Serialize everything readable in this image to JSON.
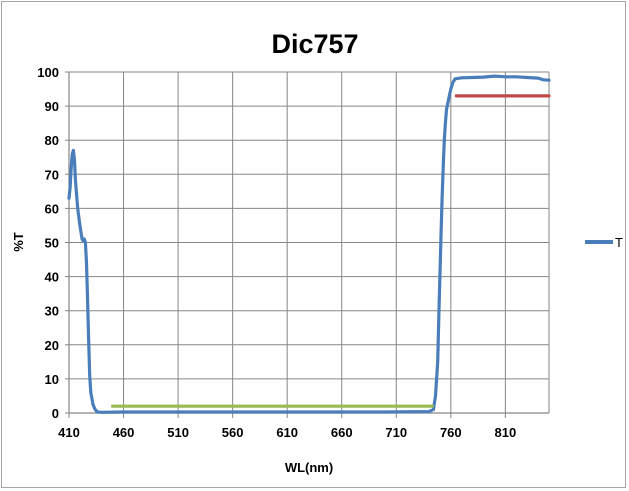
{
  "chart_data": {
    "type": "line",
    "title": "Dic757",
    "xlabel": "WL(nm)",
    "ylabel": "%T",
    "xlim": [
      410,
      850
    ],
    "ylim": [
      0,
      100
    ],
    "x_ticks": [
      410,
      460,
      510,
      560,
      610,
      660,
      710,
      760,
      810
    ],
    "y_ticks": [
      0,
      10,
      20,
      30,
      40,
      50,
      60,
      70,
      80,
      90,
      100
    ],
    "grid": true,
    "legend_position": "right",
    "series": [
      {
        "name": "T",
        "color": "#4a7ebb",
        "in_legend": true,
        "points": [
          [
            410,
            63
          ],
          [
            411,
            66
          ],
          [
            412,
            72
          ],
          [
            413,
            76
          ],
          [
            414,
            77
          ],
          [
            415,
            74
          ],
          [
            416,
            68
          ],
          [
            418,
            60
          ],
          [
            420,
            55
          ],
          [
            422,
            51
          ],
          [
            423,
            50.5
          ],
          [
            424,
            51
          ],
          [
            425,
            50
          ],
          [
            426,
            44
          ],
          [
            427,
            34
          ],
          [
            428,
            22
          ],
          [
            429,
            11
          ],
          [
            430,
            6
          ],
          [
            432,
            2.5
          ],
          [
            434,
            1
          ],
          [
            436,
            0.3
          ],
          [
            440,
            0.2
          ],
          [
            460,
            0.3
          ],
          [
            500,
            0.3
          ],
          [
            550,
            0.3
          ],
          [
            600,
            0.3
          ],
          [
            650,
            0.3
          ],
          [
            700,
            0.3
          ],
          [
            740,
            0.4
          ],
          [
            744,
            1
          ],
          [
            746,
            5
          ],
          [
            748,
            15
          ],
          [
            749,
            28
          ],
          [
            750,
            40
          ],
          [
            751,
            52
          ],
          [
            752,
            63
          ],
          [
            753,
            72
          ],
          [
            754,
            80
          ],
          [
            755,
            85
          ],
          [
            756,
            89
          ],
          [
            758,
            92
          ],
          [
            760,
            95
          ],
          [
            762,
            97
          ],
          [
            764,
            98
          ],
          [
            770,
            98.3
          ],
          [
            780,
            98.4
          ],
          [
            790,
            98.5
          ],
          [
            800,
            98.8
          ],
          [
            810,
            98.6
          ],
          [
            820,
            98.6
          ],
          [
            830,
            98.4
          ],
          [
            840,
            98.2
          ],
          [
            845,
            97.7
          ],
          [
            850,
            97.6
          ]
        ]
      },
      {
        "name": "",
        "color": "#be4b48",
        "in_legend": false,
        "points": [
          [
            765,
            93
          ],
          [
            850,
            93
          ]
        ]
      },
      {
        "name": "",
        "color": "#98b954",
        "in_legend": false,
        "points": [
          [
            450,
            2
          ],
          [
            743,
            2
          ]
        ]
      }
    ]
  }
}
